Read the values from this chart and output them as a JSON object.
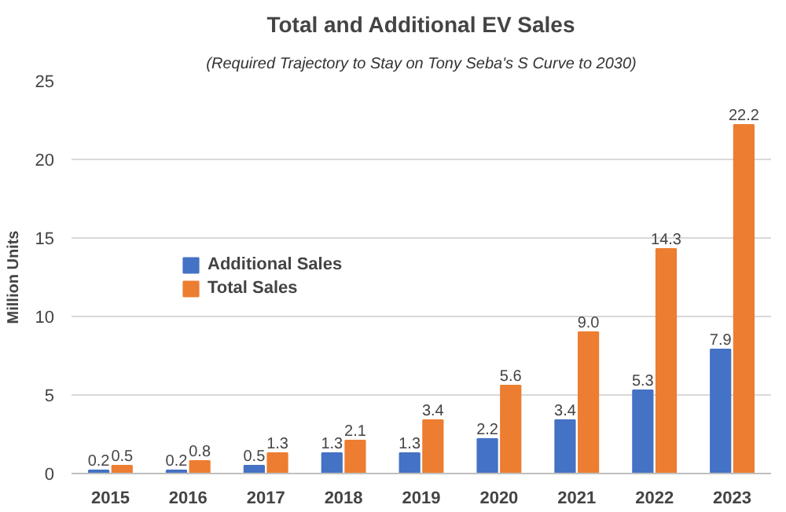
{
  "chart_data": {
    "type": "bar",
    "title": "Total and Additional EV Sales",
    "subtitle": "(Required Trajectory to Stay on Tony Seba's S Curve to 2030)",
    "ylabel": "Million Units",
    "categories": [
      "2015",
      "2016",
      "2017",
      "2018",
      "2019",
      "2020",
      "2021",
      "2022",
      "2023"
    ],
    "series": [
      {
        "name": "Additional Sales",
        "color": "#4472c4",
        "values": [
          0.2,
          0.2,
          0.5,
          1.3,
          1.3,
          2.2,
          3.4,
          5.3,
          7.9
        ]
      },
      {
        "name": "Total Sales",
        "color": "#ed7d31",
        "values": [
          0.5,
          0.8,
          1.3,
          2.1,
          3.4,
          5.6,
          9.0,
          14.3,
          22.2
        ],
        "value_labels": [
          "0.5",
          "0.8",
          "1.3",
          "2.1",
          "3.4",
          "5.6",
          "9.0",
          "14.3",
          "22.2"
        ]
      }
    ],
    "ylim": [
      0,
      25
    ],
    "yticks": [
      0,
      5,
      10,
      15,
      20,
      25
    ],
    "grid": "y",
    "legend": "left",
    "data_labels": true
  }
}
